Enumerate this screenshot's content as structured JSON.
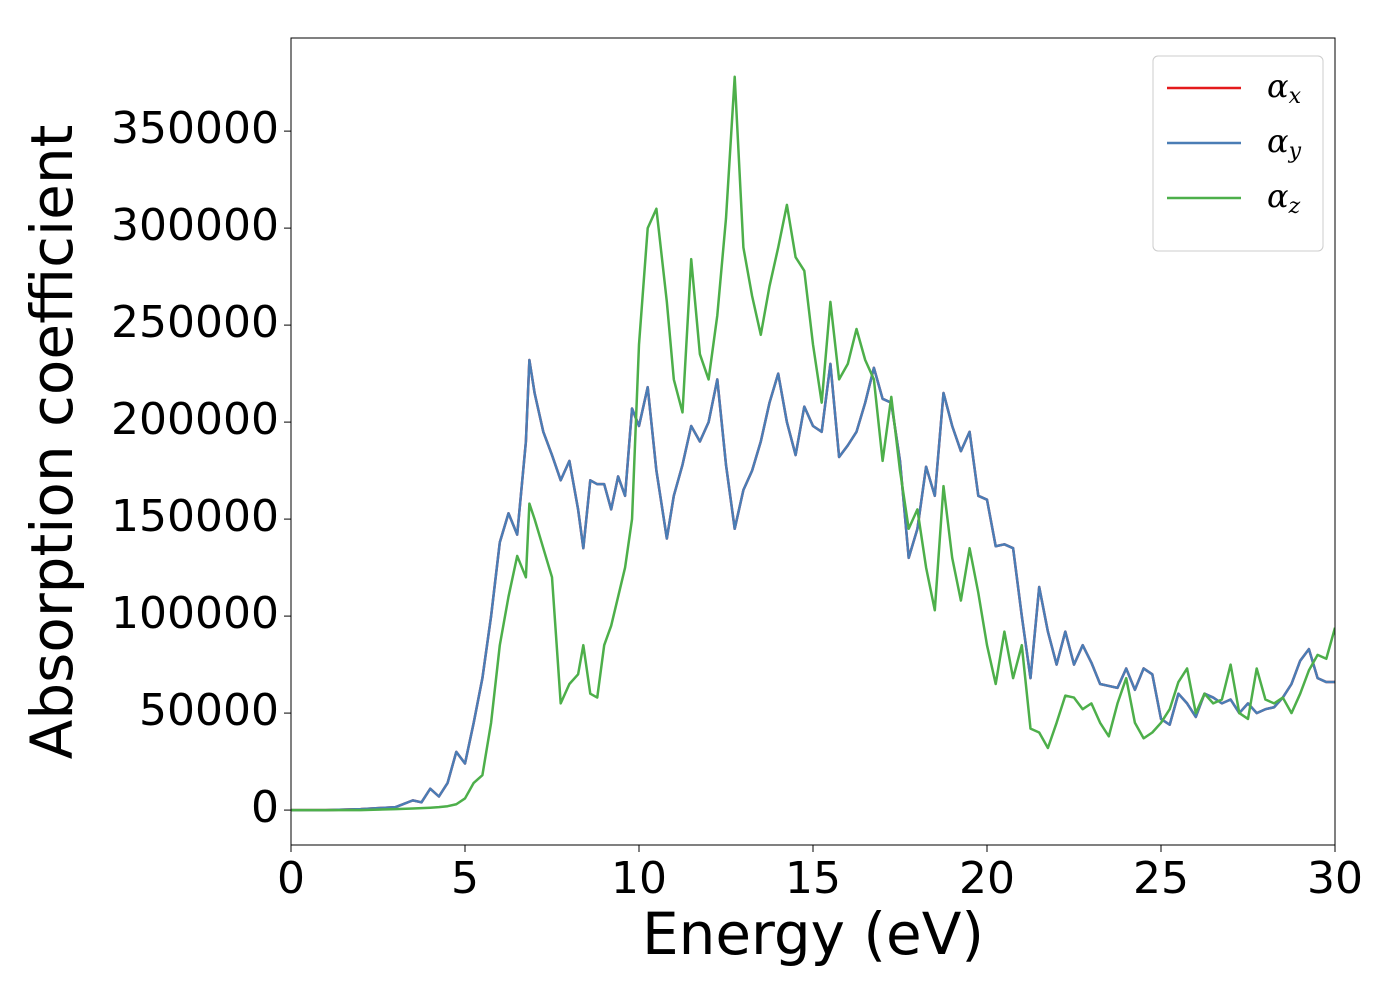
{
  "chart_data": {
    "type": "line",
    "xlabel": "Energy (eV)",
    "ylabel": "Absorption coefficient",
    "x": [
      0,
      1,
      2,
      3,
      3.5,
      3.75,
      4,
      4.25,
      4.5,
      4.75,
      5,
      5.25,
      5.5,
      5.75,
      6,
      6.25,
      6.5,
      6.75,
      6.85,
      7,
      7.25,
      7.5,
      7.75,
      8,
      8.25,
      8.4,
      8.6,
      8.8,
      9,
      9.2,
      9.4,
      9.6,
      9.8,
      10,
      10.25,
      10.5,
      10.8,
      11,
      11.25,
      11.5,
      11.75,
      12,
      12.25,
      12.5,
      12.75,
      13,
      13.25,
      13.5,
      13.75,
      14,
      14.25,
      14.5,
      14.75,
      15,
      15.25,
      15.5,
      15.75,
      16,
      16.25,
      16.5,
      16.75,
      17,
      17.25,
      17.5,
      17.75,
      18,
      18.25,
      18.5,
      18.75,
      19,
      19.25,
      19.5,
      19.75,
      20,
      20.25,
      20.5,
      20.75,
      21,
      21.25,
      21.5,
      21.75,
      22,
      22.25,
      22.5,
      22.75,
      23,
      23.25,
      23.5,
      23.75,
      24,
      24.25,
      24.5,
      24.75,
      25,
      25.25,
      25.5,
      25.75,
      26,
      26.25,
      26.5,
      26.75,
      27,
      27.25,
      27.5,
      27.75,
      28,
      28.25,
      28.5,
      28.75,
      29,
      29.25,
      29.5,
      29.75,
      30
    ],
    "series": [
      {
        "name": "αx",
        "color": "#e41a1c",
        "values": [
          0,
          0,
          500,
          1500,
          5000,
          4000,
          11000,
          7000,
          14000,
          30000,
          24000,
          45000,
          68000,
          100000,
          138000,
          153000,
          142000,
          190000,
          232000,
          215000,
          195000,
          183000,
          170000,
          180000,
          155000,
          135000,
          170000,
          168000,
          168000,
          155000,
          172000,
          162000,
          207000,
          198000,
          218000,
          175000,
          140000,
          162000,
          178000,
          198000,
          190000,
          200000,
          222000,
          178000,
          145000,
          165000,
          175000,
          190000,
          210000,
          225000,
          200000,
          183000,
          208000,
          198000,
          195000,
          230000,
          182000,
          188000,
          195000,
          210000,
          228000,
          212000,
          210000,
          180000,
          130000,
          145000,
          177000,
          162000,
          215000,
          198000,
          185000,
          195000,
          162000,
          160000,
          136000,
          137000,
          135000,
          100000,
          68000,
          115000,
          92000,
          75000,
          92000,
          75000,
          85000,
          76000,
          65000,
          64000,
          63000,
          73000,
          62000,
          73000,
          70000,
          47000,
          44000,
          60000,
          55000,
          48000,
          60000,
          58000,
          55000,
          57000,
          50000,
          55000,
          50000,
          52000,
          53000,
          58000,
          65000,
          77000,
          83000,
          68000,
          66000,
          66000
        ]
      },
      {
        "name": "αy",
        "color": "#4a7db5",
        "values": [
          0,
          0,
          500,
          1500,
          5000,
          4000,
          11000,
          7000,
          14000,
          30000,
          24000,
          45000,
          68000,
          100000,
          138000,
          153000,
          142000,
          190000,
          232000,
          215000,
          195000,
          183000,
          170000,
          180000,
          155000,
          135000,
          170000,
          168000,
          168000,
          155000,
          172000,
          162000,
          207000,
          198000,
          218000,
          175000,
          140000,
          162000,
          178000,
          198000,
          190000,
          200000,
          222000,
          178000,
          145000,
          165000,
          175000,
          190000,
          210000,
          225000,
          200000,
          183000,
          208000,
          198000,
          195000,
          230000,
          182000,
          188000,
          195000,
          210000,
          228000,
          212000,
          210000,
          180000,
          130000,
          145000,
          177000,
          162000,
          215000,
          198000,
          185000,
          195000,
          162000,
          160000,
          136000,
          137000,
          135000,
          100000,
          68000,
          115000,
          92000,
          75000,
          92000,
          75000,
          85000,
          76000,
          65000,
          64000,
          63000,
          73000,
          62000,
          73000,
          70000,
          47000,
          44000,
          60000,
          55000,
          48000,
          60000,
          58000,
          55000,
          57000,
          50000,
          55000,
          50000,
          52000,
          53000,
          58000,
          65000,
          77000,
          83000,
          68000,
          66000,
          66000
        ]
      },
      {
        "name": "αz",
        "color": "#4daf4a",
        "values": [
          0,
          0,
          0,
          500,
          800,
          1000,
          1200,
          1500,
          2000,
          3000,
          6000,
          14000,
          18000,
          45000,
          85000,
          110000,
          131000,
          120000,
          158000,
          150000,
          135000,
          120000,
          55000,
          65000,
          70000,
          85000,
          60000,
          58000,
          85000,
          95000,
          110000,
          125000,
          150000,
          240000,
          300000,
          310000,
          262000,
          222000,
          205000,
          284000,
          235000,
          222000,
          255000,
          305000,
          378000,
          290000,
          265000,
          245000,
          270000,
          290000,
          312000,
          285000,
          278000,
          240000,
          210000,
          262000,
          222000,
          230000,
          248000,
          232000,
          222000,
          180000,
          213000,
          175000,
          145000,
          155000,
          125000,
          103000,
          167000,
          130000,
          108000,
          135000,
          112000,
          85000,
          65000,
          92000,
          68000,
          85000,
          42000,
          40000,
          32000,
          45000,
          59000,
          58000,
          52000,
          55000,
          45000,
          38000,
          55000,
          68000,
          45000,
          37000,
          40000,
          45000,
          52000,
          66000,
          73000,
          50000,
          60000,
          55000,
          57000,
          75000,
          50000,
          47000,
          73000,
          57000,
          55000,
          58000,
          50000,
          60000,
          72000,
          80000,
          78000,
          94000
        ]
      }
    ],
    "xlim": [
      0,
      30
    ],
    "xticks": [
      0,
      5,
      10,
      15,
      20,
      25,
      30
    ],
    "ylim": [
      -18000,
      398000
    ],
    "yticks": [
      0,
      50000,
      100000,
      150000,
      200000,
      250000,
      300000,
      350000
    ],
    "legend": "upper right"
  }
}
